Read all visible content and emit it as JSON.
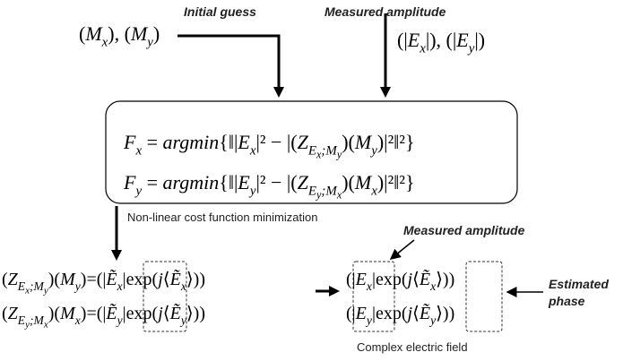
{
  "labels": {
    "initial_guess": "Initial guess",
    "measured_amplitude_top": "Measured amplitude",
    "cost_caption": "Non-linear cost function minimization",
    "measured_amplitude_right": "Measured amplitude",
    "estimated_phase": [
      "Estimated",
      "phase"
    ],
    "field_caption": "Complex electric field"
  },
  "inputs": {
    "guess": [
      {
        "u": "("
      },
      {
        "t": "M"
      },
      {
        "sub": "x"
      },
      {
        "u": "), ("
      },
      {
        "t": "M"
      },
      {
        "sub": "y"
      },
      {
        "u": ")"
      }
    ],
    "amplitude": [
      {
        "u": "(|"
      },
      {
        "t": "E"
      },
      {
        "sub": "x"
      },
      {
        "u": "|), (|"
      },
      {
        "t": "E"
      },
      {
        "sub": "y"
      },
      {
        "u": "|)"
      }
    ]
  },
  "cost_equations": [
    [
      {
        "t": "F"
      },
      {
        "sub": "x"
      },
      {
        "u": " = "
      },
      {
        "t": "argmin"
      },
      {
        "u": "{‖|"
      },
      {
        "t": "E"
      },
      {
        "sub": "x"
      },
      {
        "u": "|² − |("
      },
      {
        "t": "Z"
      },
      {
        "sub": "E"
      },
      {
        "ss": "x"
      },
      {
        "sub": ";M"
      },
      {
        "ss": "y"
      },
      {
        "u": ")("
      },
      {
        "t": "M"
      },
      {
        "sub": "y"
      },
      {
        "u": ")|²‖²}"
      }
    ],
    [
      {
        "t": "F"
      },
      {
        "sub": "y"
      },
      {
        "u": " = "
      },
      {
        "t": "argmin"
      },
      {
        "u": "{‖|"
      },
      {
        "t": "E"
      },
      {
        "sub": "y"
      },
      {
        "u": "|² − |("
      },
      {
        "t": "Z"
      },
      {
        "sub": "E"
      },
      {
        "ss": "y"
      },
      {
        "sub": ";M"
      },
      {
        "ss": "x"
      },
      {
        "u": ")("
      },
      {
        "t": "M"
      },
      {
        "sub": "x"
      },
      {
        "u": ")|²‖²}"
      }
    ]
  ],
  "result_equations": [
    [
      {
        "u": "("
      },
      {
        "t": "Z"
      },
      {
        "sub": "E"
      },
      {
        "ss": "x"
      },
      {
        "sub": ";M"
      },
      {
        "ss": "y"
      },
      {
        "u": ")("
      },
      {
        "t": "M"
      },
      {
        "sub": "y"
      },
      {
        "u": ")=(|"
      },
      {
        "t": "Ẽ"
      },
      {
        "sub": "x"
      },
      {
        "u": "|exp("
      },
      {
        "t": "j"
      },
      {
        "u": "⟨"
      },
      {
        "t": "Ẽ"
      },
      {
        "sub": "x"
      },
      {
        "u": "⟩))"
      }
    ],
    [
      {
        "u": "("
      },
      {
        "t": "Z"
      },
      {
        "sub": "E"
      },
      {
        "ss": "y"
      },
      {
        "sub": ";M"
      },
      {
        "ss": "x"
      },
      {
        "u": ")("
      },
      {
        "t": "M"
      },
      {
        "sub": "x"
      },
      {
        "u": ")=(|"
      },
      {
        "t": "Ẽ"
      },
      {
        "sub": "y"
      },
      {
        "u": "|exp("
      },
      {
        "t": "j"
      },
      {
        "u": "⟨"
      },
      {
        "t": "Ẽ"
      },
      {
        "sub": "y"
      },
      {
        "u": "⟩))"
      }
    ]
  ],
  "field_equations": [
    [
      {
        "u": "(|"
      },
      {
        "t": "E"
      },
      {
        "sub": "x"
      },
      {
        "u": "|exp("
      },
      {
        "t": "j"
      },
      {
        "u": "⟨"
      },
      {
        "t": "Ẽ"
      },
      {
        "sub": "x"
      },
      {
        "u": "⟩))"
      }
    ],
    [
      {
        "u": "(|"
      },
      {
        "t": "E"
      },
      {
        "sub": "y"
      },
      {
        "u": "|exp("
      },
      {
        "t": "j"
      },
      {
        "u": "⟨"
      },
      {
        "t": "Ẽ"
      },
      {
        "sub": "y"
      },
      {
        "u": "⟩))"
      }
    ]
  ]
}
